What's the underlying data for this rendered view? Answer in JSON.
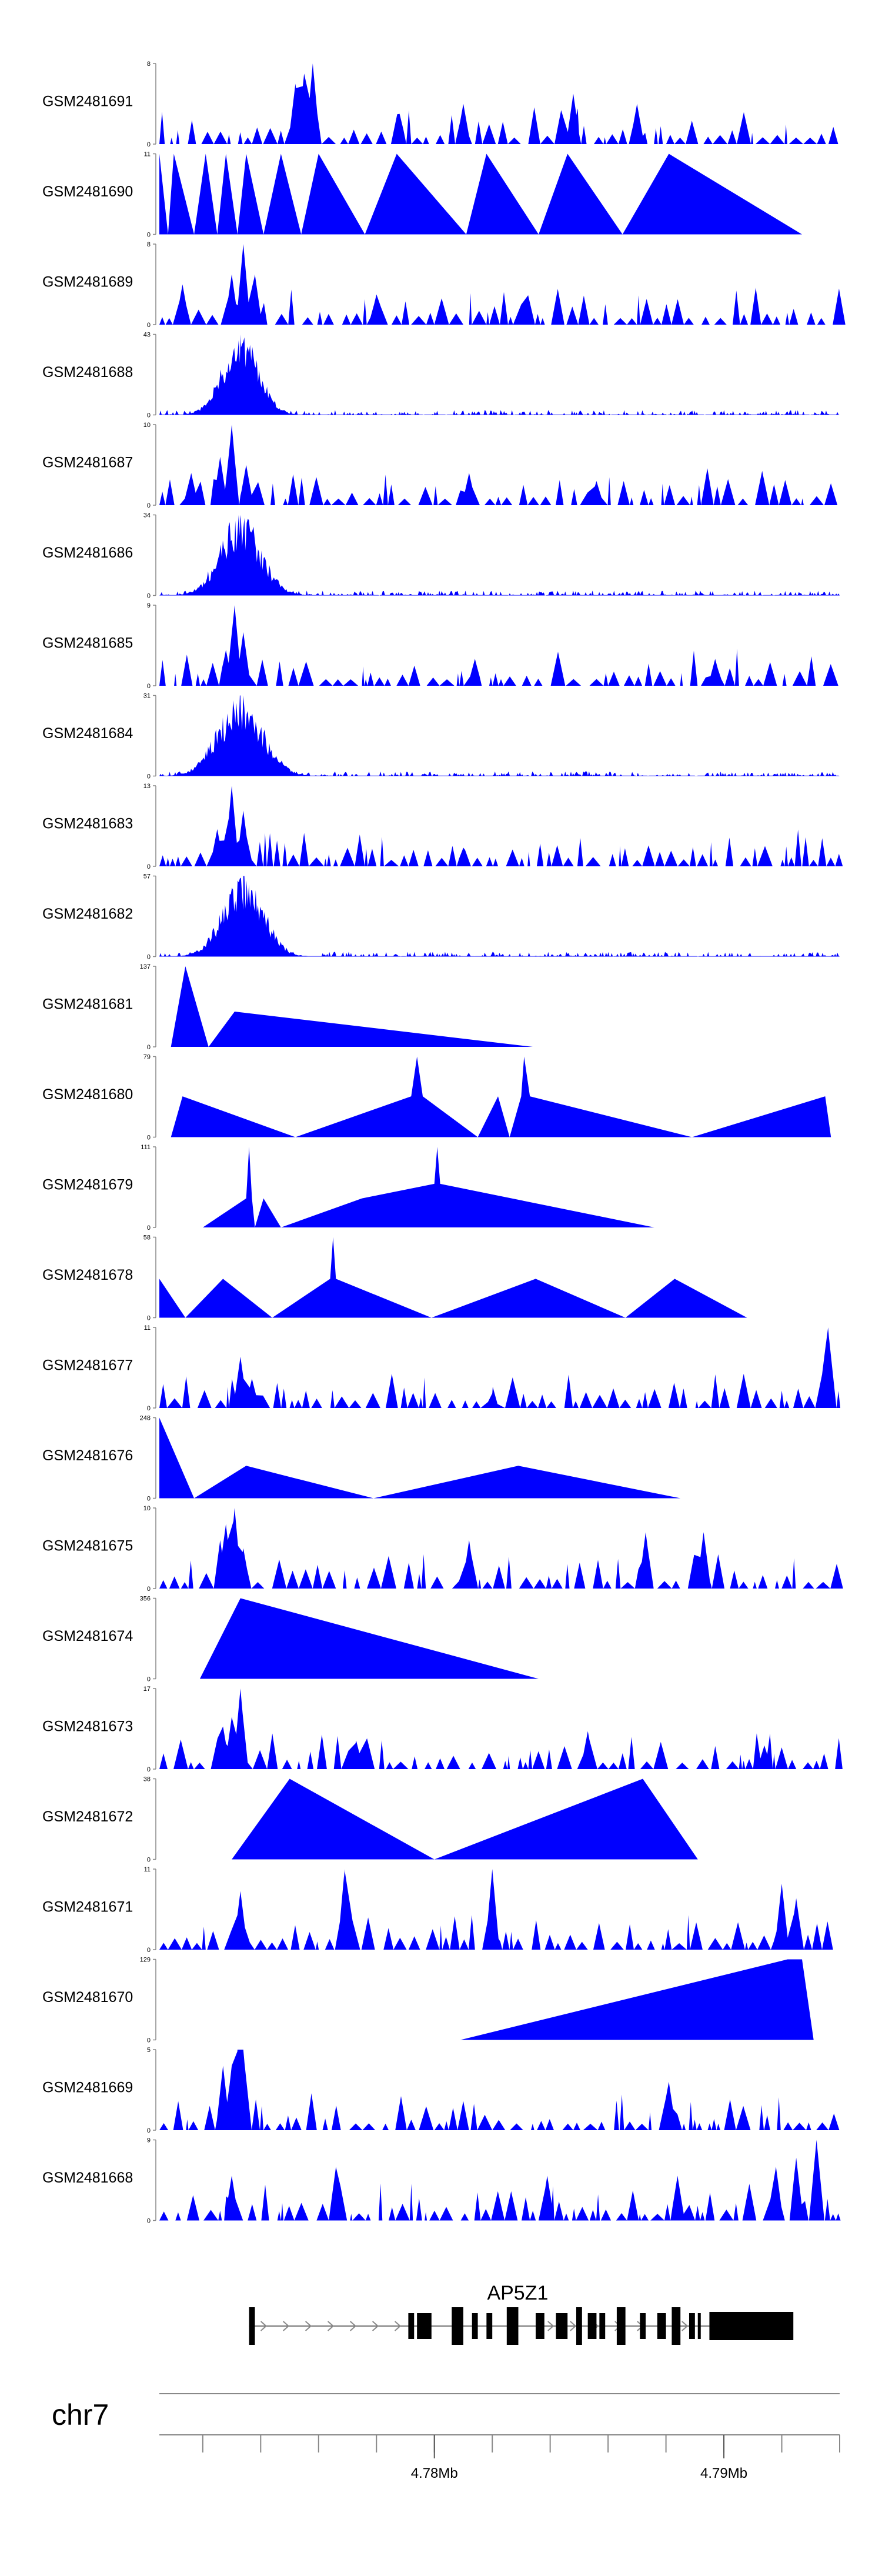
{
  "chart_data": {
    "type": "area",
    "title": "",
    "chromosome": "chr7",
    "x_unit": "Mb",
    "xlim": [
      4.7705,
      4.794
    ],
    "x_ticks": [
      4.772,
      4.774,
      4.776,
      4.778,
      4.78,
      4.782,
      4.784,
      4.786,
      4.788,
      4.79,
      4.792,
      4.794
    ],
    "x_tick_labels": [
      {
        "value": 4.78,
        "text": "4.78Mb"
      },
      {
        "value": 4.79,
        "text": "4.79Mb"
      }
    ],
    "fill_color": "#0000ff",
    "gene": {
      "name": "AP5Z1",
      "strand": "+",
      "start": 4.7736,
      "end": 4.7924,
      "exons": [
        [
          4.7736,
          4.7738
        ],
        [
          4.7791,
          4.7793
        ],
        [
          4.7794,
          4.7799
        ],
        [
          4.7806,
          4.781
        ],
        [
          4.7813,
          4.7815
        ],
        [
          4.7818,
          4.782
        ],
        [
          4.7825,
          4.7829
        ],
        [
          4.7835,
          4.7838
        ],
        [
          4.7842,
          4.7846
        ],
        [
          4.7849,
          4.7851
        ],
        [
          4.7853,
          4.7856
        ],
        [
          4.7857,
          4.7859
        ],
        [
          4.7863,
          4.7866
        ],
        [
          4.7871,
          4.7873
        ],
        [
          4.7877,
          4.788
        ],
        [
          4.7882,
          4.7885
        ],
        [
          4.7888,
          4.789
        ],
        [
          4.7891,
          4.7892
        ],
        [
          4.7895,
          4.7924
        ]
      ]
    },
    "tracks": [
      {
        "name": "GSM2481691",
        "ymax": 8,
        "profile": "noisy",
        "peaks": [
          [
            4.7758,
            8
          ],
          [
            4.7752,
            6
          ],
          [
            4.7755,
            7
          ],
          [
            4.7788,
            3
          ],
          [
            4.781,
            4
          ],
          [
            4.7848,
            5
          ],
          [
            4.787,
            4
          ]
        ]
      },
      {
        "name": "GSM2481690",
        "ymax": 11,
        "profile": "tri",
        "points": [
          [
            4.7705,
            11
          ],
          [
            4.7708,
            0
          ],
          [
            4.771,
            11
          ],
          [
            4.7717,
            0
          ],
          [
            4.7721,
            11
          ],
          [
            4.7725,
            0
          ],
          [
            4.7728,
            11
          ],
          [
            4.7732,
            0
          ],
          [
            4.7735,
            11
          ],
          [
            4.7741,
            0
          ],
          [
            4.7747,
            11
          ],
          [
            4.7754,
            0
          ],
          [
            4.776,
            11
          ],
          [
            4.7776,
            0
          ],
          [
            4.7787,
            11
          ],
          [
            4.7811,
            0
          ],
          [
            4.7818,
            11
          ],
          [
            4.7836,
            0
          ],
          [
            4.7846,
            11
          ],
          [
            4.7865,
            0
          ],
          [
            4.7881,
            11
          ],
          [
            4.7927,
            0
          ]
        ]
      },
      {
        "name": "GSM2481689",
        "ymax": 8,
        "profile": "noisy",
        "peaks": [
          [
            4.7734,
            8
          ],
          [
            4.773,
            5
          ],
          [
            4.7738,
            5
          ],
          [
            4.7713,
            4
          ],
          [
            4.778,
            3
          ],
          [
            4.783,
            2
          ]
        ]
      },
      {
        "name": "GSM2481688",
        "ymax": 43,
        "profile": "cluster",
        "center": 4.7733,
        "width": 0.0009,
        "peak": 43
      },
      {
        "name": "GSM2481687",
        "ymax": 10,
        "profile": "noisy",
        "peaks": [
          [
            4.773,
            10
          ],
          [
            4.7726,
            6
          ],
          [
            4.7735,
            5
          ],
          [
            4.7716,
            4
          ],
          [
            4.7812,
            4
          ],
          [
            4.7856,
            3
          ]
        ]
      },
      {
        "name": "GSM2481686",
        "ymax": 34,
        "profile": "cluster",
        "center": 4.7733,
        "width": 0.001,
        "peak": 34
      },
      {
        "name": "GSM2481685",
        "ymax": 9,
        "profile": "noisy",
        "peaks": [
          [
            4.7731,
            9
          ],
          [
            4.7734,
            6
          ],
          [
            4.7728,
            4
          ],
          [
            4.7814,
            3
          ],
          [
            4.7897,
            3
          ]
        ]
      },
      {
        "name": "GSM2481684",
        "ymax": 31,
        "profile": "cluster",
        "center": 4.7733,
        "width": 0.0011,
        "peak": 31
      },
      {
        "name": "GSM2481683",
        "ymax": 13,
        "profile": "noisy",
        "peaks": [
          [
            4.773,
            13
          ],
          [
            4.7734,
            9
          ],
          [
            4.7725,
            6
          ],
          [
            4.777,
            3
          ],
          [
            4.781,
            3
          ]
        ]
      },
      {
        "name": "GSM2481682",
        "ymax": 57,
        "profile": "cluster",
        "center": 4.7734,
        "width": 0.001,
        "peak": 57
      },
      {
        "name": "GSM2481681",
        "ymax": 137,
        "profile": "tri",
        "points": [
          [
            4.7709,
            0
          ],
          [
            4.7714,
            137
          ],
          [
            4.7722,
            0
          ],
          [
            4.7731,
            60
          ],
          [
            4.7834,
            0
          ]
        ]
      },
      {
        "name": "GSM2481680",
        "ymax": 79,
        "profile": "tri",
        "points": [
          [
            4.7709,
            0
          ],
          [
            4.7713,
            40
          ],
          [
            4.7752,
            0
          ],
          [
            4.7792,
            40
          ],
          [
            4.7794,
            79
          ],
          [
            4.7796,
            40
          ],
          [
            4.7815,
            0
          ],
          [
            4.7822,
            40
          ],
          [
            4.7826,
            0
          ],
          [
            4.783,
            40
          ],
          [
            4.7831,
            79
          ],
          [
            4.7833,
            40
          ],
          [
            4.7889,
            0
          ],
          [
            4.7935,
            40
          ],
          [
            4.7937,
            0
          ]
        ]
      },
      {
        "name": "GSM2481679",
        "ymax": 111,
        "profile": "tri",
        "points": [
          [
            4.772,
            0
          ],
          [
            4.7735,
            40
          ],
          [
            4.7736,
            111
          ],
          [
            4.7737,
            40
          ],
          [
            4.7738,
            0
          ],
          [
            4.7741,
            40
          ],
          [
            4.7747,
            0
          ],
          [
            4.7775,
            40
          ],
          [
            4.78,
            60
          ],
          [
            4.7801,
            111
          ],
          [
            4.7802,
            60
          ],
          [
            4.7876,
            0
          ]
        ]
      },
      {
        "name": "GSM2481678",
        "ymax": 58,
        "profile": "tri",
        "points": [
          [
            4.7705,
            28
          ],
          [
            4.7714,
            0
          ],
          [
            4.7727,
            28
          ],
          [
            4.7744,
            0
          ],
          [
            4.7764,
            28
          ],
          [
            4.7765,
            58
          ],
          [
            4.7766,
            28
          ],
          [
            4.7799,
            0
          ],
          [
            4.7835,
            28
          ],
          [
            4.7866,
            0
          ],
          [
            4.7883,
            28
          ],
          [
            4.7908,
            0
          ]
        ]
      },
      {
        "name": "GSM2481677",
        "ymax": 11,
        "profile": "noisy",
        "peaks": [
          [
            4.7733,
            7
          ],
          [
            4.7936,
            11
          ],
          [
            4.7935,
            8
          ],
          [
            4.7737,
            4
          ],
          [
            4.782,
            2
          ]
        ]
      },
      {
        "name": "GSM2481676",
        "ymax": 248,
        "profile": "tri",
        "points": [
          [
            4.7705,
            248
          ],
          [
            4.7717,
            0
          ],
          [
            4.7735,
            100
          ],
          [
            4.7779,
            0
          ],
          [
            4.7829,
            100
          ],
          [
            4.7885,
            0
          ]
        ]
      },
      {
        "name": "GSM2481675",
        "ymax": 10,
        "profile": "noisy",
        "peaks": [
          [
            4.7731,
            10
          ],
          [
            4.7728,
            8
          ],
          [
            4.7726,
            6
          ],
          [
            4.7734,
            5
          ],
          [
            4.7873,
            7
          ],
          [
            4.7893,
            7
          ],
          [
            4.7812,
            6
          ]
        ]
      },
      {
        "name": "GSM2481674",
        "ymax": 356,
        "profile": "tri",
        "points": [
          [
            4.7719,
            0
          ],
          [
            4.7733,
            356
          ],
          [
            4.7836,
            0
          ]
        ]
      },
      {
        "name": "GSM2481673",
        "ymax": 17,
        "profile": "noisy",
        "peaks": [
          [
            4.7733,
            17
          ],
          [
            4.773,
            11
          ],
          [
            4.7727,
            9
          ],
          [
            4.7853,
            8
          ],
          [
            4.7773,
            6
          ],
          [
            4.7914,
            5
          ]
        ]
      },
      {
        "name": "GSM2481672",
        "ymax": 38,
        "profile": "tri",
        "points": [
          [
            4.773,
            0
          ],
          [
            4.775,
            38
          ],
          [
            4.78,
            0
          ],
          [
            4.7872,
            38
          ],
          [
            4.7891,
            0
          ]
        ]
      },
      {
        "name": "GSM2481671",
        "ymax": 11,
        "profile": "noisy",
        "peaks": [
          [
            4.7769,
            11
          ],
          [
            4.782,
            11
          ],
          [
            4.7733,
            8
          ],
          [
            4.792,
            9
          ],
          [
            4.7925,
            7
          ],
          [
            4.7769,
            9
          ]
        ]
      },
      {
        "name": "GSM2481670",
        "ymax": 129,
        "profile": "tri",
        "points": [
          [
            4.7809,
            0
          ],
          [
            4.7922,
            129
          ],
          [
            4.7927,
            129
          ],
          [
            4.7931,
            0
          ]
        ]
      },
      {
        "name": "GSM2481669",
        "ymax": 5,
        "profile": "noisy",
        "peaks": [
          [
            4.7732,
            5
          ],
          [
            4.7734,
            5
          ],
          [
            4.773,
            4
          ],
          [
            4.7727,
            4
          ],
          [
            4.7881,
            3
          ]
        ]
      },
      {
        "name": "GSM2481668",
        "ymax": 9,
        "profile": "noisy",
        "peaks": [
          [
            4.7932,
            9
          ],
          [
            4.7925,
            7
          ],
          [
            4.7918,
            6
          ],
          [
            4.7766,
            6
          ],
          [
            4.773,
            5
          ],
          [
            4.7884,
            5
          ],
          [
            4.7839,
            5
          ]
        ]
      }
    ]
  }
}
